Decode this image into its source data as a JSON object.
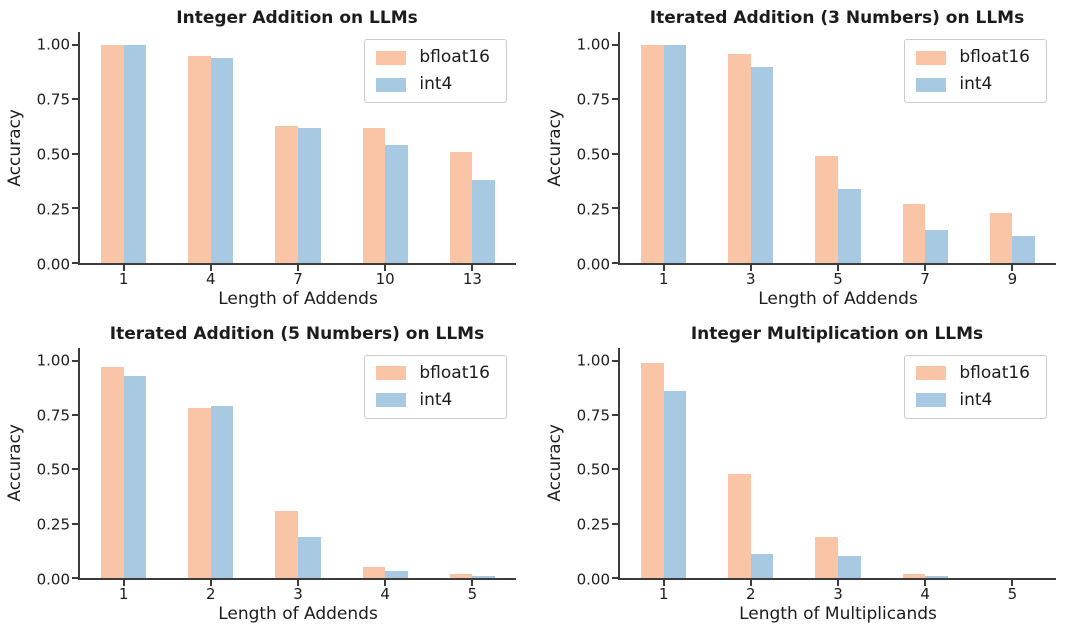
{
  "colors": {
    "bfloat16": "#F9C5A6",
    "int4": "#A7C9E2",
    "axis": "#3c3c3c",
    "text": "#1c1c1c",
    "legend_border": "#cccccc",
    "background": "#ffffff"
  },
  "legend": {
    "position": "upper-right",
    "entries": [
      {
        "label": "bfloat16",
        "color_key": "bfloat16"
      },
      {
        "label": "int4",
        "color_key": "int4"
      }
    ]
  },
  "chart_data": [
    {
      "id": "integer-addition",
      "type": "bar",
      "title": "Integer Addition on LLMs",
      "xlabel": "Length of Addends",
      "ylabel": "Accuracy",
      "categories": [
        "1",
        "4",
        "7",
        "10",
        "13"
      ],
      "series": [
        {
          "name": "bfloat16",
          "values": [
            1.0,
            0.95,
            0.63,
            0.62,
            0.51
          ]
        },
        {
          "name": "int4",
          "values": [
            1.0,
            0.94,
            0.62,
            0.54,
            0.38
          ]
        }
      ],
      "ylim": [
        0,
        1.06
      ],
      "yticks": [
        0.0,
        0.25,
        0.5,
        0.75,
        1.0
      ],
      "ytick_labels": [
        "0.00",
        "0.25",
        "0.50",
        "0.75",
        "1.00"
      ],
      "grid": false,
      "spines": "left-bottom",
      "legend_position": "upper-right"
    },
    {
      "id": "iterated-addition-3",
      "type": "bar",
      "title": "Iterated Addition (3 Numbers) on LLMs",
      "xlabel": "Length of Addends",
      "ylabel": "Accuracy",
      "categories": [
        "1",
        "3",
        "5",
        "7",
        "9"
      ],
      "series": [
        {
          "name": "bfloat16",
          "values": [
            1.0,
            0.96,
            0.49,
            0.27,
            0.23
          ]
        },
        {
          "name": "int4",
          "values": [
            1.0,
            0.9,
            0.34,
            0.15,
            0.12
          ]
        }
      ],
      "ylim": [
        0,
        1.06
      ],
      "yticks": [
        0.0,
        0.25,
        0.5,
        0.75,
        1.0
      ],
      "ytick_labels": [
        "0.00",
        "0.25",
        "0.50",
        "0.75",
        "1.00"
      ],
      "grid": false,
      "spines": "left-bottom",
      "legend_position": "upper-right"
    },
    {
      "id": "iterated-addition-5",
      "type": "bar",
      "title": "Iterated Addition (5 Numbers) on LLMs",
      "xlabel": "Length of Addends",
      "ylabel": "Accuracy",
      "categories": [
        "1",
        "2",
        "3",
        "4",
        "5"
      ],
      "series": [
        {
          "name": "bfloat16",
          "values": [
            0.97,
            0.78,
            0.31,
            0.05,
            0.02
          ]
        },
        {
          "name": "int4",
          "values": [
            0.93,
            0.79,
            0.19,
            0.03,
            0.01
          ]
        }
      ],
      "ylim": [
        0,
        1.06
      ],
      "yticks": [
        0.0,
        0.25,
        0.5,
        0.75,
        1.0
      ],
      "ytick_labels": [
        "0.00",
        "0.25",
        "0.50",
        "0.75",
        "1.00"
      ],
      "grid": false,
      "spines": "left-bottom",
      "legend_position": "upper-right"
    },
    {
      "id": "integer-multiplication",
      "type": "bar",
      "title": "Integer Multiplication on LLMs",
      "xlabel": "Length of Multiplicands",
      "ylabel": "Accuracy",
      "categories": [
        "1",
        "2",
        "3",
        "4",
        "5"
      ],
      "series": [
        {
          "name": "bfloat16",
          "values": [
            0.99,
            0.48,
            0.19,
            0.02,
            0.0
          ]
        },
        {
          "name": "int4",
          "values": [
            0.86,
            0.11,
            0.1,
            0.01,
            0.0
          ]
        }
      ],
      "ylim": [
        0,
        1.06
      ],
      "yticks": [
        0.0,
        0.25,
        0.5,
        0.75,
        1.0
      ],
      "ytick_labels": [
        "0.00",
        "0.25",
        "0.50",
        "0.75",
        "1.00"
      ],
      "grid": false,
      "spines": "left-bottom",
      "legend_position": "upper-right"
    }
  ]
}
